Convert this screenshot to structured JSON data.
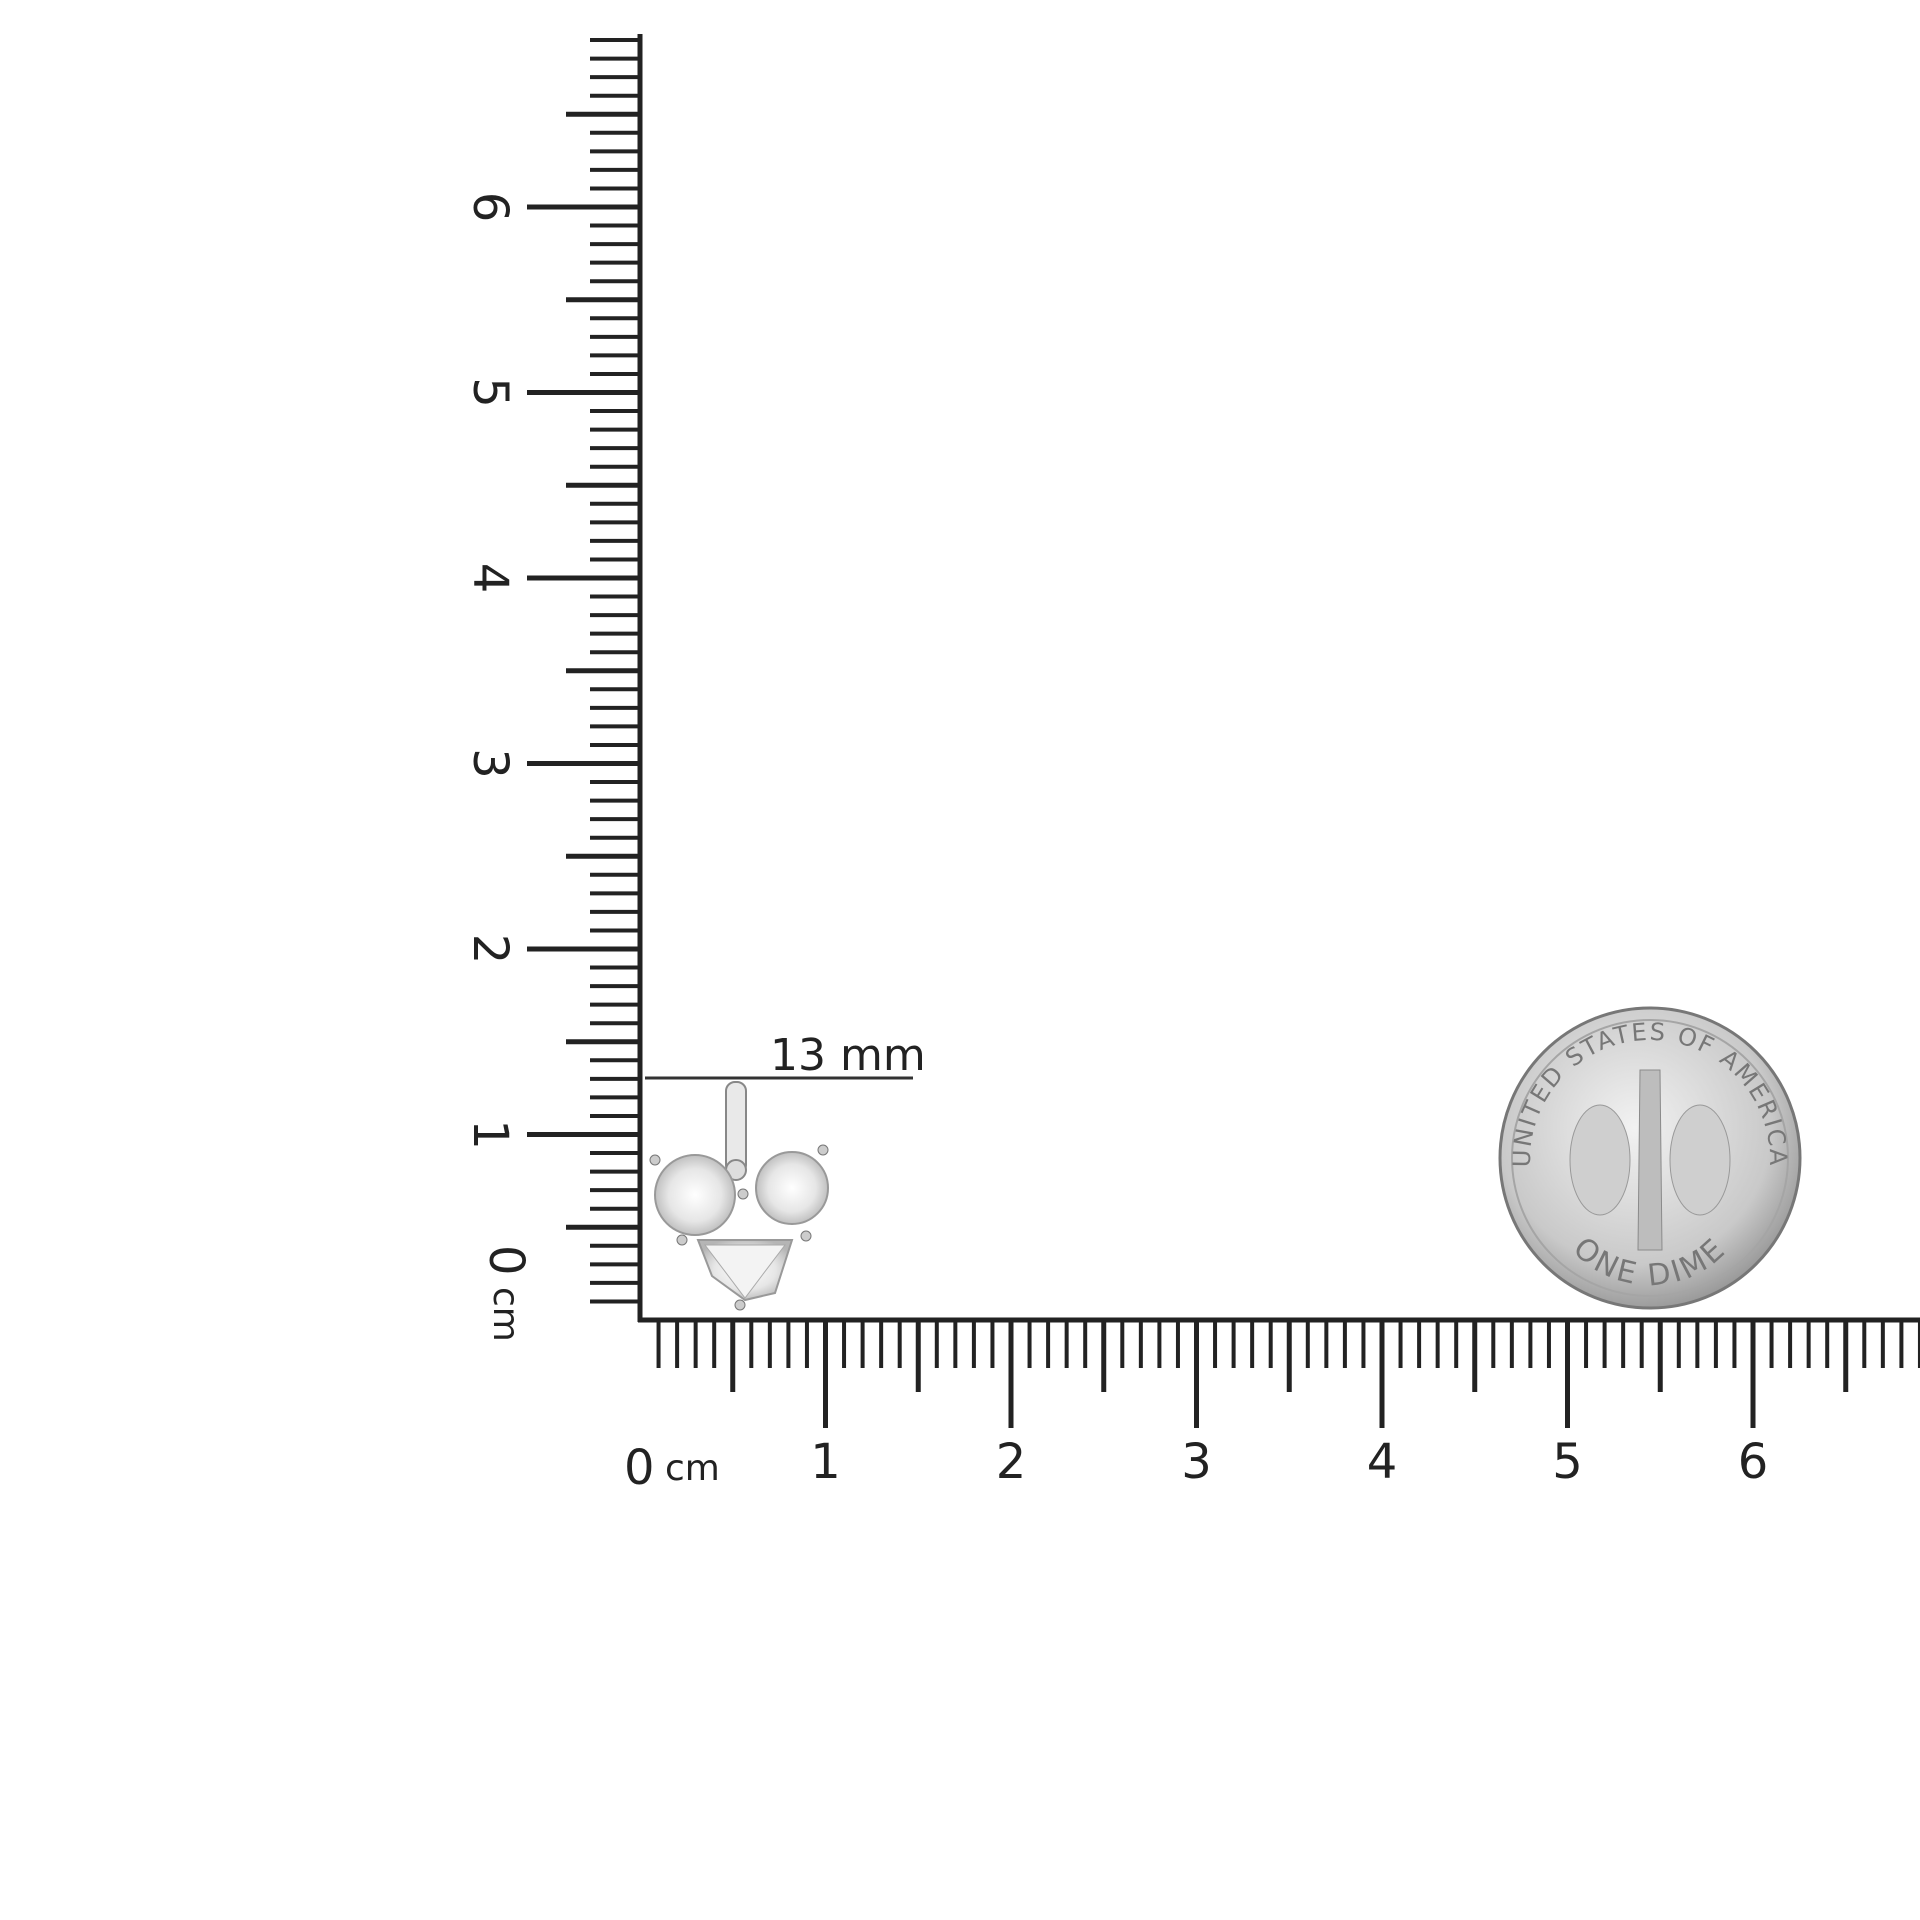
{
  "rulers": {
    "horizontal": {
      "zero": "0",
      "unit": "cm",
      "labels": [
        "1",
        "2",
        "3",
        "4",
        "5",
        "6"
      ]
    },
    "vertical": {
      "zero": "0",
      "unit": "cm",
      "labels": [
        "1",
        "2",
        "3",
        "4",
        "5",
        "6"
      ]
    }
  },
  "measurement": {
    "label": "13 mm"
  },
  "coin": {
    "top_text": "UNITED STATES OF AMERICA",
    "bottom_text": "ONE DIME"
  }
}
